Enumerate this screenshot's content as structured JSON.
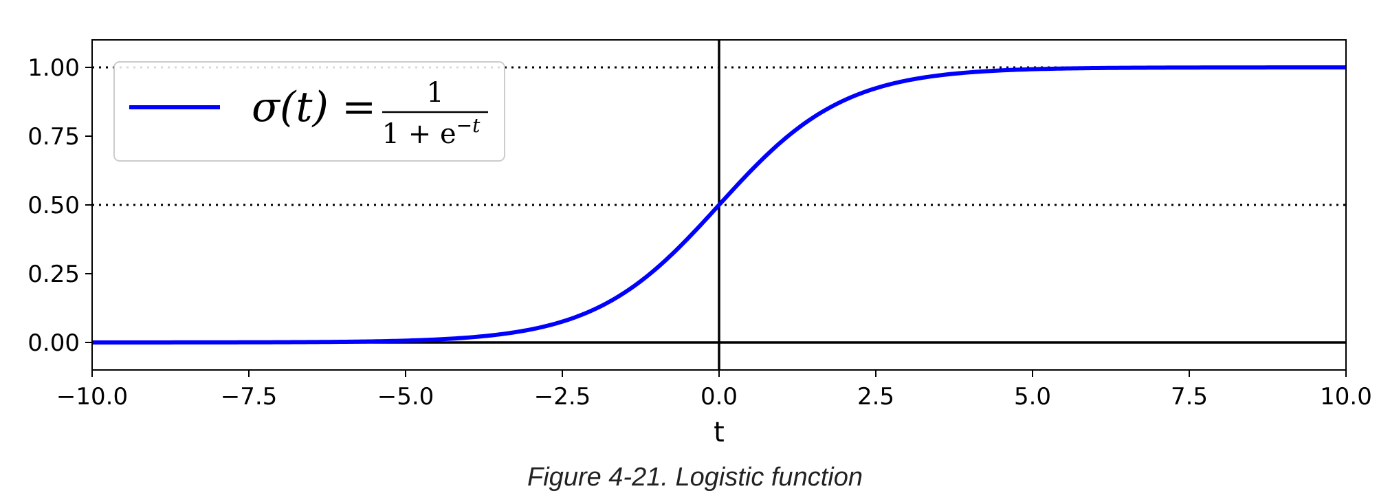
{
  "chart_data": {
    "type": "line",
    "function": "logistic",
    "xlim": [
      -10,
      10
    ],
    "ylim": [
      -0.1,
      1.1
    ],
    "xlabel": "t",
    "ylabel": "",
    "x_ticks": [
      "−10.0",
      "−7.5",
      "−5.0",
      "−2.5",
      "0.0",
      "2.5",
      "5.0",
      "7.5",
      "10.0"
    ],
    "x_tick_values": [
      -10,
      -7.5,
      -5,
      -2.5,
      0,
      2.5,
      5,
      7.5,
      10
    ],
    "y_ticks": [
      "0.00",
      "0.25",
      "0.50",
      "0.75",
      "1.00"
    ],
    "y_tick_values": [
      0,
      0.25,
      0.5,
      0.75,
      1.0
    ],
    "series": [
      {
        "name": "σ(t) = 1 / (1 + e^−t)",
        "color": "#0000ff",
        "x": [
          -10,
          -9,
          -8,
          -7,
          -6,
          -5,
          -4,
          -3,
          -2.5,
          -2,
          -1.5,
          -1,
          -0.5,
          0,
          0.5,
          1,
          1.5,
          2,
          2.5,
          3,
          4,
          5,
          6,
          7,
          8,
          9,
          10
        ],
        "y": [
          0.0,
          0.0001,
          0.0003,
          0.0009,
          0.0025,
          0.0067,
          0.018,
          0.0474,
          0.0759,
          0.1192,
          0.1824,
          0.2689,
          0.3775,
          0.5,
          0.6225,
          0.7311,
          0.8176,
          0.8808,
          0.9241,
          0.9526,
          0.982,
          0.9933,
          0.9975,
          0.9991,
          0.9997,
          0.9999,
          1.0
        ]
      }
    ],
    "reference_lines": [
      {
        "orientation": "horizontal",
        "value": 0,
        "style": "solid"
      },
      {
        "orientation": "horizontal",
        "value": 0.5,
        "style": "dotted"
      },
      {
        "orientation": "horizontal",
        "value": 1,
        "style": "dotted"
      },
      {
        "orientation": "vertical",
        "value": 0,
        "style": "solid"
      }
    ],
    "legend": {
      "placement": "upper-left",
      "label_lhs": "σ(t) =",
      "numerator": "1",
      "denominator_base": "1 + e",
      "denominator_exp": "−t"
    },
    "grid": false
  },
  "caption": "Figure 4-21. Logistic function"
}
